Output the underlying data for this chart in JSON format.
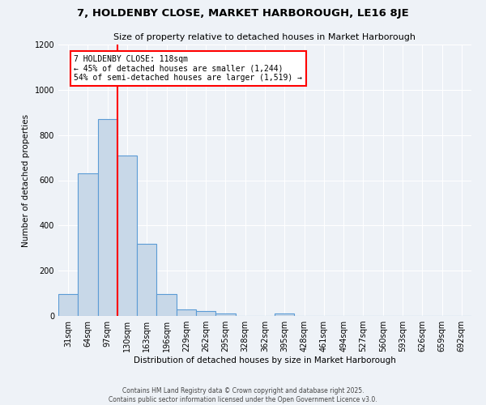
{
  "title": "7, HOLDENBY CLOSE, MARKET HARBOROUGH, LE16 8JE",
  "subtitle": "Size of property relative to detached houses in Market Harborough",
  "xlabel": "Distribution of detached houses by size in Market Harborough",
  "ylabel": "Number of detached properties",
  "bar_color": "#c8d8e8",
  "bar_edge_color": "#5b9bd5",
  "bin_labels": [
    "31sqm",
    "64sqm",
    "97sqm",
    "130sqm",
    "163sqm",
    "196sqm",
    "229sqm",
    "262sqm",
    "295sqm",
    "328sqm",
    "362sqm",
    "395sqm",
    "428sqm",
    "461sqm",
    "494sqm",
    "527sqm",
    "560sqm",
    "593sqm",
    "626sqm",
    "659sqm",
    "692sqm"
  ],
  "bar_values": [
    97,
    630,
    870,
    710,
    320,
    97,
    28,
    20,
    10,
    0,
    0,
    10,
    0,
    0,
    0,
    0,
    0,
    0,
    0,
    0,
    0
  ],
  "vline_color": "red",
  "annotation_text": "7 HOLDENBY CLOSE: 118sqm\n← 45% of detached houses are smaller (1,244)\n54% of semi-detached houses are larger (1,519) →",
  "annotation_box_color": "white",
  "annotation_box_edge_color": "red",
  "ylim": [
    0,
    1200
  ],
  "yticks": [
    0,
    200,
    400,
    600,
    800,
    1000,
    1200
  ],
  "background_color": "#eef2f7",
  "footer_line1": "Contains HM Land Registry data © Crown copyright and database right 2025.",
  "footer_line2": "Contains public sector information licensed under the Open Government Licence v3.0."
}
